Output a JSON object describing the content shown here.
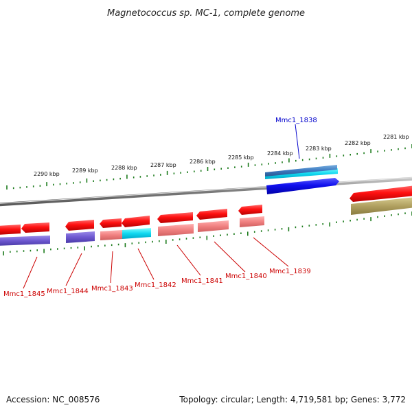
{
  "title": "Magnetococcus sp. MC-1, complete genome",
  "footer": {
    "accession": "Accession: NC_008576",
    "summary": "Topology: circular; Length: 4,719,581 bp; Genes: 3,772"
  },
  "scale_labels": [
    "2290 kbp",
    "2289 kbp",
    "2288 kbp",
    "2287 kbp",
    "2286 kbp",
    "2285 kbp",
    "2284 kbp",
    "2283 kbp",
    "2282 kbp",
    "2281 kbp"
  ],
  "genes": [
    {
      "label": "Mmc1_1845",
      "strand": "reverse",
      "color": "#cc0000"
    },
    {
      "label": "Mmc1_1844",
      "strand": "reverse",
      "color": "#cc0000"
    },
    {
      "label": "Mmc1_1843",
      "strand": "reverse",
      "color": "#cc0000"
    },
    {
      "label": "Mmc1_1842",
      "strand": "reverse",
      "color": "#cc0000"
    },
    {
      "label": "Mmc1_1841",
      "strand": "reverse",
      "color": "#cc0000"
    },
    {
      "label": "Mmc1_1840",
      "strand": "reverse",
      "color": "#cc0000"
    },
    {
      "label": "Mmc1_1839",
      "strand": "reverse",
      "color": "#cc0000"
    },
    {
      "label": "Mmc1_1838",
      "strand": "forward",
      "color": "#0000cc"
    }
  ]
}
